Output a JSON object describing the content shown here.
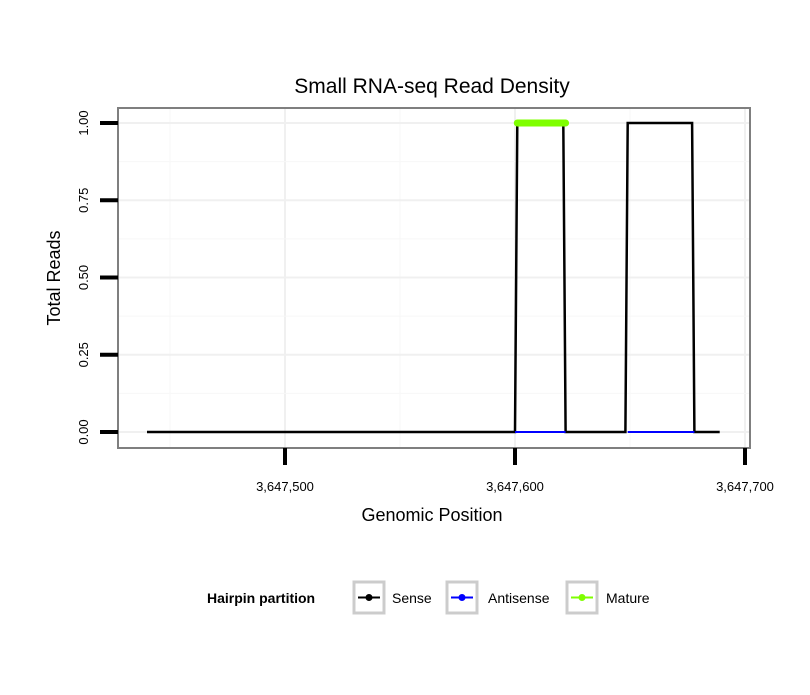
{
  "chart_data": {
    "type": "line",
    "title": "Small RNA-seq Read Density",
    "xlabel": "Genomic Position",
    "ylabel": "Total Reads",
    "xlim": [
      3647428,
      3647702
    ],
    "ylim": [
      -0.05,
      1.05
    ],
    "x_ticks": [
      3647500,
      3647600,
      3647700
    ],
    "x_tick_labels": [
      "3,647,500",
      "3,647,600",
      "3,647,700"
    ],
    "y_ticks": [
      0,
      0.25,
      0.5,
      0.75,
      1
    ],
    "y_tick_labels": [
      "0.00",
      "0.25",
      "0.50",
      "0.75",
      "1.00"
    ],
    "grid": true,
    "legend": {
      "title": "Hairpin partition",
      "position": "bottom"
    },
    "series": [
      {
        "name": "Sense",
        "color": "#000000",
        "segments": [
          [
            [
              3647440,
              0
            ],
            [
              3647600,
              0
            ],
            [
              3647601,
              1
            ],
            [
              3647621,
              1
            ],
            [
              3647622,
              0
            ],
            [
              3647648,
              0
            ],
            [
              3647649,
              1
            ],
            [
              3647677,
              1
            ],
            [
              3647678,
              0
            ],
            [
              3647689,
              0
            ]
          ]
        ]
      },
      {
        "name": "Antisense",
        "color": "#0000ff",
        "segments": [
          [
            [
              3647600,
              0
            ],
            [
              3647622,
              0
            ]
          ],
          [
            [
              3647649,
              0
            ],
            [
              3647678,
              0
            ]
          ]
        ]
      },
      {
        "name": "Mature",
        "color": "#7fff00",
        "segments": [
          [
            [
              3647601,
              1
            ],
            [
              3647622,
              1
            ]
          ]
        ]
      }
    ]
  }
}
